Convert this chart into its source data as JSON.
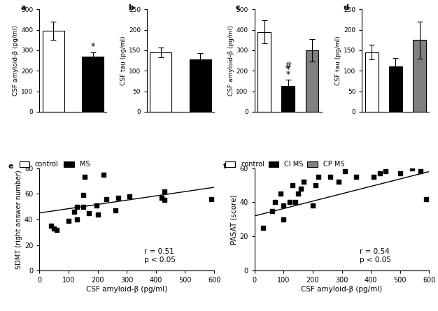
{
  "panel_a": {
    "categories": [
      "control",
      "MS"
    ],
    "values": [
      395,
      270
    ],
    "errors": [
      45,
      20
    ],
    "colors": [
      "white",
      "black"
    ],
    "ylabel": "CSF amyloid-β (pg/ml)",
    "ylim": [
      0,
      500
    ],
    "yticks": [
      0,
      100,
      200,
      300,
      400,
      500
    ],
    "label": "a",
    "significance": {
      "bar": 1,
      "text": "*"
    }
  },
  "panel_b": {
    "categories": [
      "control",
      "MS"
    ],
    "values": [
      145,
      128
    ],
    "errors": [
      12,
      15
    ],
    "colors": [
      "white",
      "black"
    ],
    "ylabel": "CSF tau (pg/ml)",
    "ylim": [
      0,
      250
    ],
    "yticks": [
      0,
      50,
      100,
      150,
      200,
      250
    ],
    "label": "b"
  },
  "panel_c": {
    "categories": [
      "control",
      "CI MS",
      "CP MS"
    ],
    "values": [
      390,
      125,
      300
    ],
    "errors": [
      55,
      30,
      55
    ],
    "colors": [
      "white",
      "black",
      "#808080"
    ],
    "ylabel": "CSF amyloid-β (pg/ml)",
    "ylim": [
      0,
      500
    ],
    "yticks": [
      0,
      100,
      200,
      300,
      400,
      500
    ],
    "label": "c"
  },
  "panel_d": {
    "categories": [
      "control",
      "CI MS",
      "CP MS"
    ],
    "values": [
      145,
      110,
      175
    ],
    "errors": [
      18,
      22,
      45
    ],
    "colors": [
      "white",
      "black",
      "#808080"
    ],
    "ylabel": "CSF tau (pg/ml)",
    "ylim": [
      0,
      250
    ],
    "yticks": [
      0,
      50,
      100,
      150,
      200,
      250
    ],
    "label": "d"
  },
  "panel_e": {
    "x": [
      40,
      50,
      60,
      100,
      120,
      130,
      130,
      150,
      150,
      155,
      170,
      195,
      200,
      220,
      230,
      260,
      270,
      310,
      420,
      430,
      430,
      590
    ],
    "y": [
      35,
      33,
      32,
      39,
      46,
      40,
      50,
      50,
      59,
      73,
      45,
      51,
      44,
      75,
      56,
      47,
      57,
      58,
      57,
      55,
      62,
      56
    ],
    "xlabel": "CSF amyloid-β (pg/ml)",
    "ylabel": "SDMT (right answer number)",
    "xlim": [
      0,
      600
    ],
    "ylim": [
      0,
      80
    ],
    "xticks": [
      0,
      100,
      200,
      300,
      400,
      500,
      600
    ],
    "yticks": [
      0,
      20,
      40,
      60,
      80
    ],
    "label": "e",
    "r": 0.51,
    "p_text": "p < 0.05",
    "line_x": [
      0,
      600
    ],
    "line_y": [
      45,
      65
    ]
  },
  "panel_f": {
    "x": [
      30,
      60,
      70,
      90,
      100,
      100,
      120,
      130,
      140,
      150,
      160,
      170,
      200,
      210,
      220,
      260,
      290,
      310,
      350,
      410,
      430,
      450,
      500,
      540,
      570,
      590
    ],
    "y": [
      25,
      35,
      40,
      45,
      30,
      38,
      40,
      50,
      40,
      45,
      48,
      52,
      38,
      50,
      55,
      55,
      52,
      58,
      55,
      55,
      57,
      58,
      57,
      60,
      58,
      42
    ],
    "xlabel": "CSF amyloid-β (pg/ml)",
    "ylabel": "PASAT (score)",
    "xlim": [
      0,
      600
    ],
    "ylim": [
      0,
      60
    ],
    "xticks": [
      0,
      100,
      200,
      300,
      400,
      500,
      600
    ],
    "yticks": [
      0,
      20,
      40,
      60
    ],
    "label": "f",
    "r": 0.54,
    "p_text": "p < 0.05",
    "line_x": [
      0,
      600
    ],
    "line_y": [
      32,
      58
    ]
  }
}
